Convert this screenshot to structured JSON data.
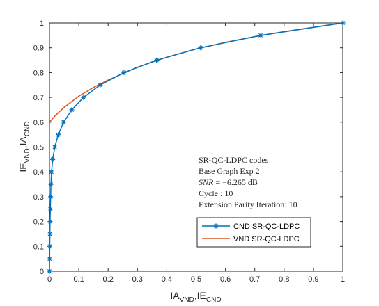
{
  "chart_data": {
    "type": "line",
    "xlim": [
      0,
      1
    ],
    "ylim": [
      0,
      1
    ],
    "x_ticks": [
      "0",
      "0.1",
      "0.2",
      "0.3",
      "0.4",
      "0.5",
      "0.6",
      "0.7",
      "0.8",
      "0.9",
      "1"
    ],
    "y_ticks": [
      "0",
      "0.1",
      "0.2",
      "0.3",
      "0.4",
      "0.5",
      "0.6",
      "0.7",
      "0.8",
      "0.9",
      "1"
    ],
    "xlabel": {
      "base1": "IA",
      "sub1": "VND",
      "mid": ",IE",
      "sub2": "CND"
    },
    "ylabel": {
      "base1": "IE",
      "sub1": "VND",
      "mid": ",IA",
      "sub2": "CND"
    },
    "grid": false,
    "legend_position": "lower-right",
    "annotation": {
      "line1": "SR-QC-LDPC codes",
      "line2": "Base Graph Exp 2",
      "line3_italic": "SNR",
      "line3_rest": " = −6.265 dB",
      "line4": "Cycle : 10",
      "line5": "Extension Parity Iteration: 10"
    },
    "series": [
      {
        "name": "CND SR-QC-LDPC",
        "color": "#0072BD",
        "marker": "asterisk",
        "points": [
          [
            0.0,
            0.0
          ],
          [
            0.0005,
            0.05
          ],
          [
            0.001,
            0.1
          ],
          [
            0.0015,
            0.15
          ],
          [
            0.002,
            0.2
          ],
          [
            0.003,
            0.25
          ],
          [
            0.004,
            0.3
          ],
          [
            0.005,
            0.35
          ],
          [
            0.007,
            0.4
          ],
          [
            0.011,
            0.45
          ],
          [
            0.018,
            0.5
          ],
          [
            0.03,
            0.55
          ],
          [
            0.048,
            0.6
          ],
          [
            0.076,
            0.65
          ],
          [
            0.116,
            0.7
          ],
          [
            0.173,
            0.75
          ],
          [
            0.254,
            0.8
          ],
          [
            0.365,
            0.85
          ],
          [
            0.515,
            0.9
          ],
          [
            0.72,
            0.95
          ],
          [
            1.0,
            1.0
          ]
        ]
      },
      {
        "name": "VND SR-QC-LDPC",
        "color": "#D95319",
        "marker": "none",
        "points": [
          [
            0.0,
            0.6
          ],
          [
            0.02,
            0.627
          ],
          [
            0.05,
            0.66
          ],
          [
            0.1,
            0.705
          ],
          [
            0.15,
            0.74
          ],
          [
            0.2,
            0.77
          ],
          [
            0.3,
            0.822
          ],
          [
            0.4,
            0.862
          ],
          [
            0.5,
            0.895
          ],
          [
            0.6,
            0.922
          ],
          [
            0.7,
            0.945
          ],
          [
            0.8,
            0.965
          ],
          [
            0.9,
            0.983
          ],
          [
            1.0,
            1.0
          ]
        ]
      }
    ]
  }
}
